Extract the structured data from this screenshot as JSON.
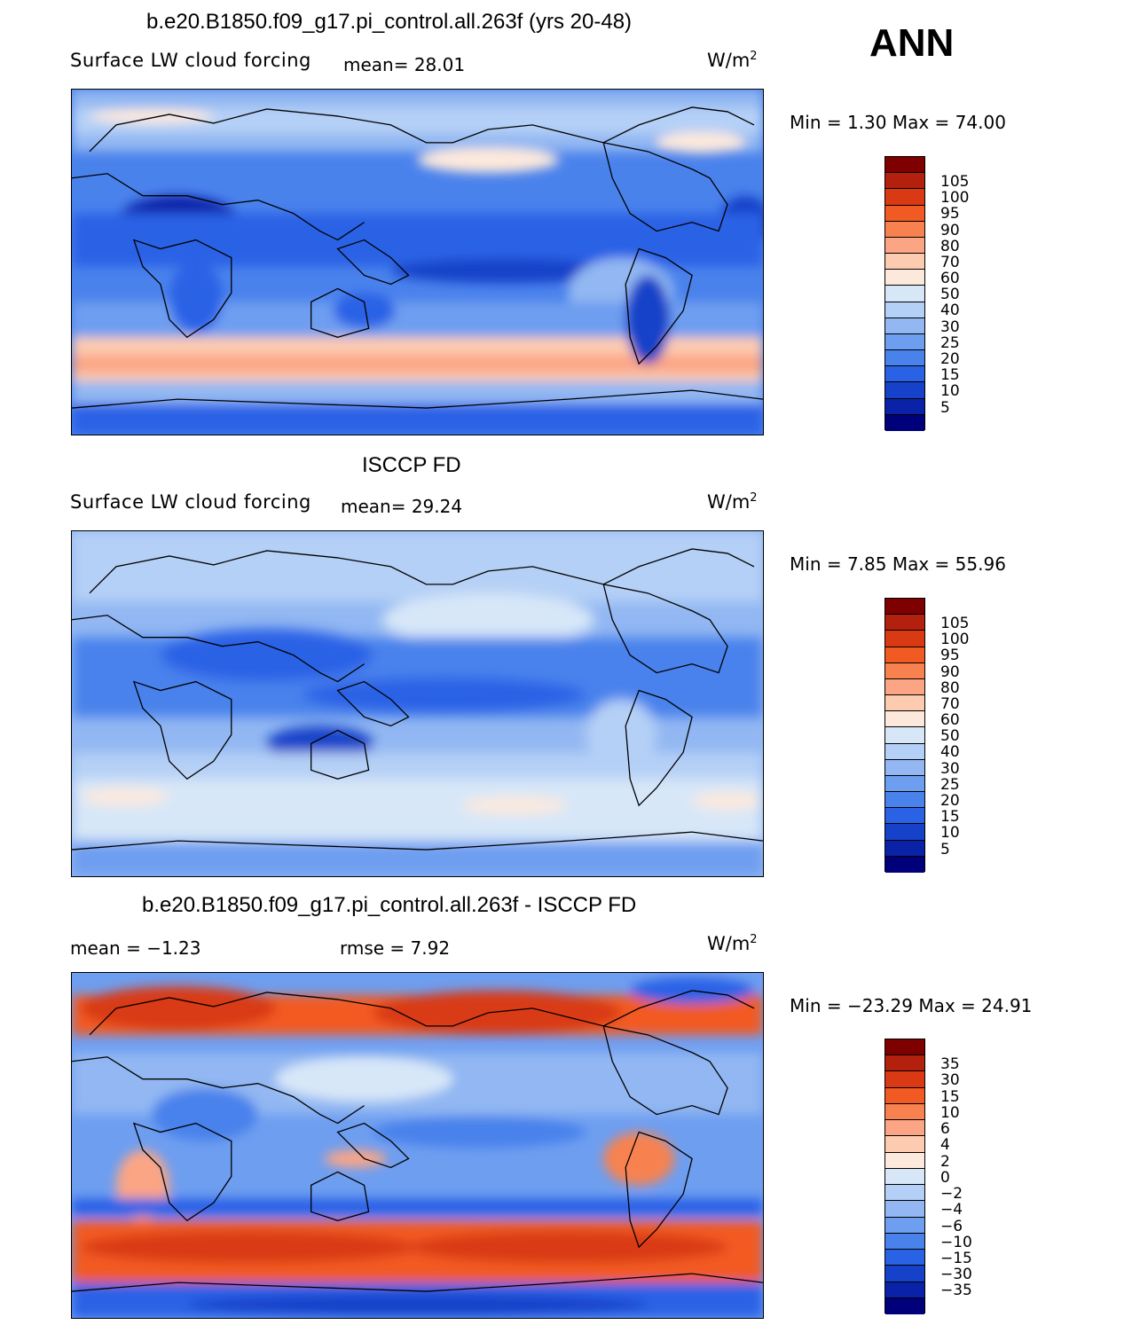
{
  "header": {
    "ann_label": "ANN"
  },
  "panels": [
    {
      "title": "b.e20.B1850.f09_g17.pi_control.all.263f (yrs 20-48)",
      "subtitle": "Surface LW cloud forcing",
      "mean_text": "mean=   28.01",
      "units": "W/m",
      "units_exp": "2",
      "minmax": "Min =    1.30 Max =   74.00",
      "style": "model",
      "colorbar": {
        "colors": [
          "#7f0000",
          "#b3210e",
          "#d93a14",
          "#f25a24",
          "#f7824f",
          "#fba585",
          "#fdcbb0",
          "#fde9dc",
          "#d7e7f8",
          "#b5d0f6",
          "#92b7f2",
          "#6e9ef0",
          "#4a82ec",
          "#2a62e6",
          "#1542c9",
          "#0a22a8",
          "#00007a"
        ],
        "labels": [
          "105",
          "100",
          "95",
          "90",
          "80",
          "70",
          "60",
          "50",
          "40",
          "30",
          "25",
          "20",
          "15",
          "10",
          "5"
        ]
      }
    },
    {
      "title": "ISCCP FD",
      "subtitle": "Surface LW cloud forcing",
      "mean_text": "mean=   29.24",
      "units": "W/m",
      "units_exp": "2",
      "minmax": "Min =    7.85 Max =   55.96",
      "style": "obs",
      "colorbar": {
        "colors": [
          "#7f0000",
          "#b3210e",
          "#d93a14",
          "#f25a24",
          "#f7824f",
          "#fba585",
          "#fdcbb0",
          "#fde9dc",
          "#d7e7f8",
          "#b5d0f6",
          "#92b7f2",
          "#6e9ef0",
          "#4a82ec",
          "#2a62e6",
          "#1542c9",
          "#0a22a8",
          "#00007a"
        ],
        "labels": [
          "105",
          "100",
          "95",
          "90",
          "80",
          "70",
          "60",
          "50",
          "40",
          "30",
          "25",
          "20",
          "15",
          "10",
          "5"
        ]
      }
    },
    {
      "title": "b.e20.B1850.f09_g17.pi_control.all.263f - ISCCP FD",
      "mean_text": "mean =  −1.23",
      "rmse_text": "rmse =    7.92",
      "units": "W/m",
      "units_exp": "2",
      "minmax": "Min = −23.29 Max =   24.91",
      "style": "diff",
      "colorbar": {
        "colors": [
          "#7f0000",
          "#b3210e",
          "#d93a14",
          "#f25a24",
          "#f7824f",
          "#fba585",
          "#fdcbb0",
          "#fde9dc",
          "#d7e7f8",
          "#b5d0f6",
          "#92b7f2",
          "#6e9ef0",
          "#4a82ec",
          "#2a62e6",
          "#1542c9",
          "#0a22a8",
          "#00007a"
        ],
        "labels": [
          "35",
          "30",
          "15",
          "10",
          "6",
          "4",
          "2",
          "0",
          "−2",
          "−4",
          "−6",
          "−10",
          "−15",
          "−30",
          "−35"
        ]
      }
    }
  ]
}
